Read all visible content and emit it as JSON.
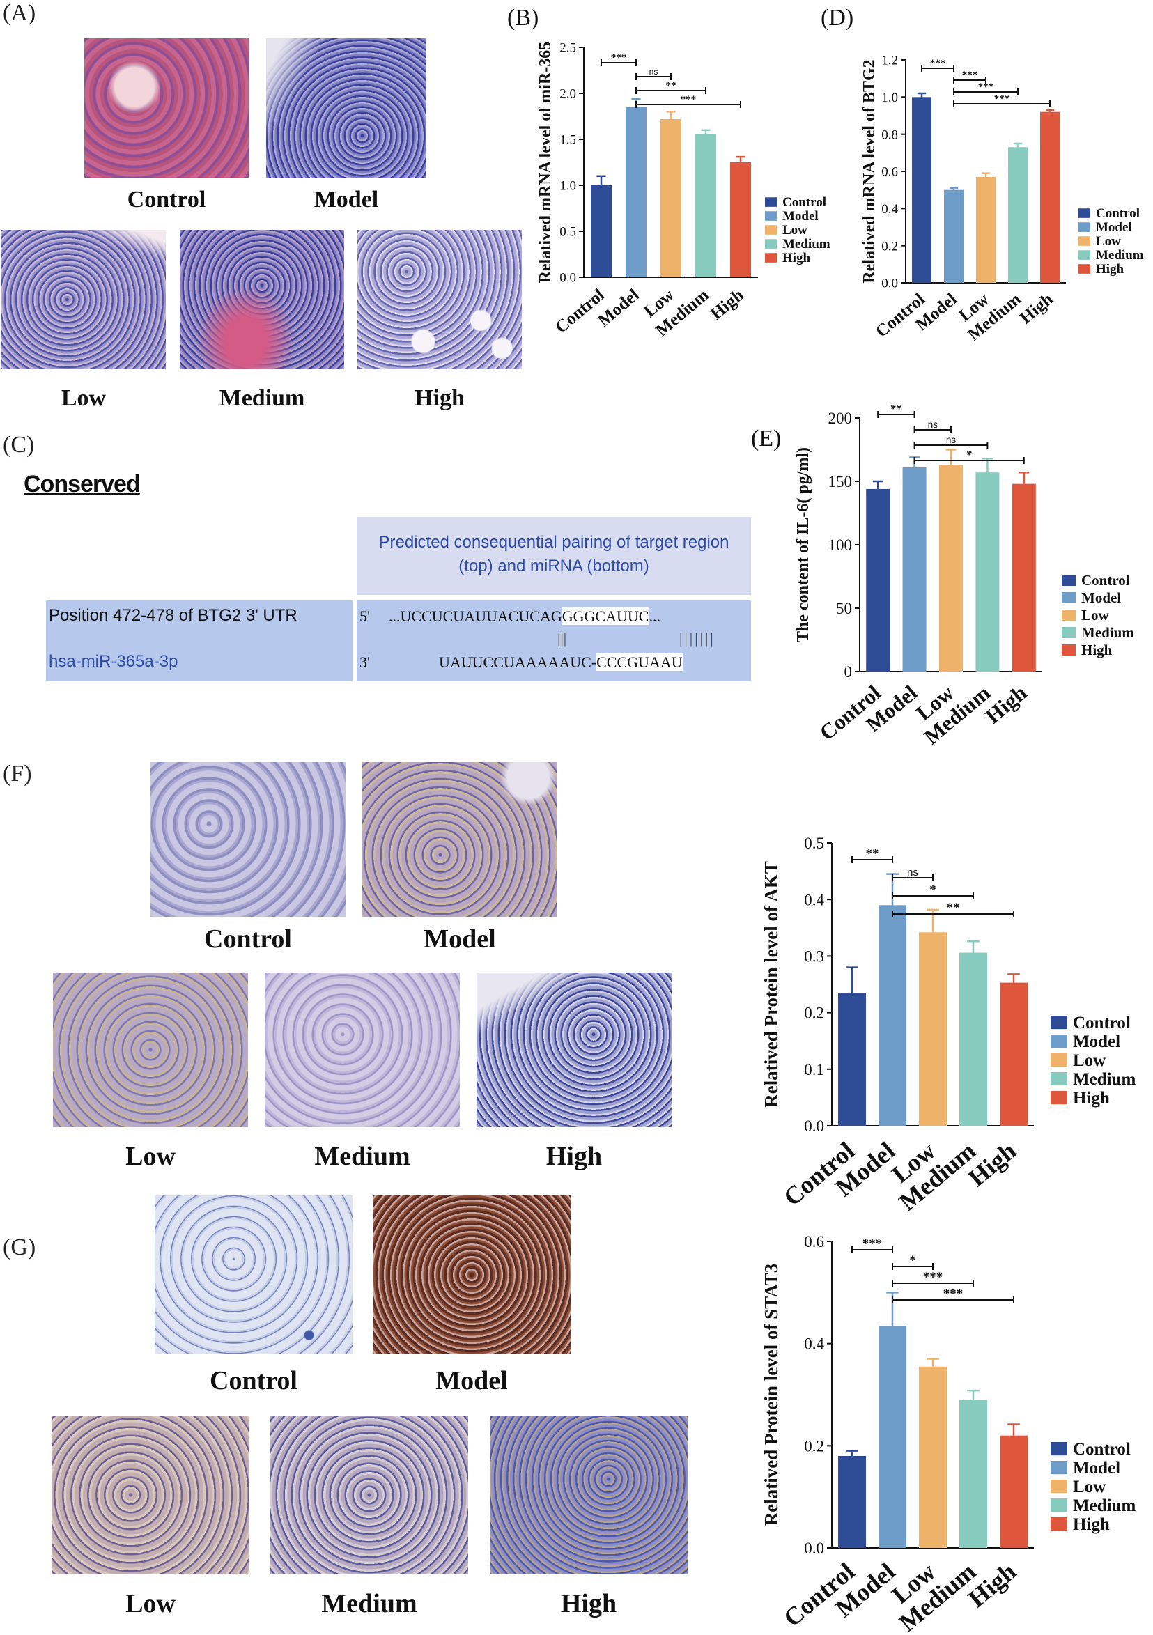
{
  "colors": {
    "Control": "#2e4b96",
    "Model": "#6e9cc8",
    "Low": "#efb26a",
    "Medium": "#86cbbd",
    "High": "#de563c",
    "box_header": "#d7dcf1",
    "box_row": "#b6c8eb",
    "header_text": "#2d4ba4",
    "mirna_text": "#2d4ba4"
  },
  "panels": {
    "A": {
      "letter": "(A)",
      "labels": [
        "Control",
        "Model",
        "Low",
        "Medium",
        "High"
      ]
    },
    "C": {
      "letter": "(C)",
      "title": "Conserved",
      "header": "Predicted consequential pairing of target region (top) and miRNA (bottom)",
      "row1_label": "Position 472-478 of BTG2 3' UTR",
      "row1_prime": "5'",
      "row1_seq_pre": "...UCCUCUAUUACUCAG",
      "row1_seq_hl": "GGGCAUUC",
      "row1_seq_post": "...",
      "pairing_left": "|||",
      "pairing_right": "|||||||",
      "row2_label": "hsa-miR-365a-3p",
      "row2_prime": "3'",
      "row2_seq_pre": "UAUUCCUAAAAAUC-",
      "row2_seq_hl": "CCCGUAAU"
    },
    "F": {
      "letter": "(F)",
      "labels": [
        "Control",
        "Model",
        "Low",
        "Medium",
        "High"
      ]
    },
    "G": {
      "letter": "(G)",
      "labels": [
        "Control",
        "Model",
        "Low",
        "Medium",
        "High"
      ]
    }
  },
  "chart_data": [
    {
      "id": "B",
      "letter": "(B)",
      "type": "bar",
      "categories": [
        "Control",
        "Model",
        "Low",
        "Medium",
        "High"
      ],
      "values": [
        1.0,
        1.85,
        1.72,
        1.56,
        1.25
      ],
      "errors": [
        0.1,
        0.09,
        0.08,
        0.04,
        0.06
      ],
      "ylabel": "Relatived mRNA level of miR-365",
      "ylim": [
        0,
        2.5
      ],
      "yticks": [
        "0.0",
        "0.5",
        "1.0",
        "1.5",
        "2.0",
        "2.5"
      ],
      "legend": [
        "Control",
        "Model",
        "Low",
        "Medium",
        "High"
      ],
      "significance": [
        {
          "from": 0,
          "to": 1,
          "label": "***"
        },
        {
          "from": 1,
          "to": 2,
          "label": "ns"
        },
        {
          "from": 1,
          "to": 3,
          "label": "**"
        },
        {
          "from": 1,
          "to": 4,
          "label": "***"
        }
      ]
    },
    {
      "id": "D",
      "letter": "(D)",
      "type": "bar",
      "categories": [
        "Control",
        "Model",
        "Low",
        "Medium",
        "High"
      ],
      "values": [
        1.0,
        0.5,
        0.57,
        0.73,
        0.92
      ],
      "errors": [
        0.02,
        0.01,
        0.02,
        0.02,
        0.01
      ],
      "ylabel": "Relatived mRNA level of BTG2",
      "ylim": [
        0,
        1.2
      ],
      "yticks": [
        "0.0",
        "0.2",
        "0.4",
        "0.6",
        "0.8",
        "1.0",
        "1.2"
      ],
      "legend": [
        "Control",
        "Model",
        "Low",
        "Medium",
        "High"
      ],
      "significance": [
        {
          "from": 0,
          "to": 1,
          "label": "***"
        },
        {
          "from": 1,
          "to": 2,
          "label": "***"
        },
        {
          "from": 1,
          "to": 3,
          "label": "***"
        },
        {
          "from": 1,
          "to": 4,
          "label": "***"
        }
      ]
    },
    {
      "id": "E",
      "letter": "(E)",
      "type": "bar",
      "categories": [
        "Control",
        "Model",
        "Low",
        "Medium",
        "High"
      ],
      "values": [
        144,
        161,
        163,
        157,
        148
      ],
      "errors": [
        6,
        8,
        12,
        11,
        9
      ],
      "ylabel": "The content  of IL-6( pg/ml)",
      "ylim": [
        0,
        200
      ],
      "yticks": [
        "0",
        "50",
        "100",
        "150",
        "200"
      ],
      "legend": [
        "Control",
        "Model",
        "Low",
        "Medium",
        "High"
      ],
      "significance": [
        {
          "from": 0,
          "to": 1,
          "label": "**"
        },
        {
          "from": 1,
          "to": 2,
          "label": "ns"
        },
        {
          "from": 1,
          "to": 3,
          "label": "ns"
        },
        {
          "from": 1,
          "to": 4,
          "label": "*"
        }
      ]
    },
    {
      "id": "AKT",
      "letter": "",
      "type": "bar",
      "categories": [
        "Control",
        "Model",
        "Low",
        "Medium",
        "High"
      ],
      "values": [
        0.235,
        0.39,
        0.342,
        0.306,
        0.253
      ],
      "errors": [
        0.045,
        0.055,
        0.04,
        0.02,
        0.015
      ],
      "ylabel": "Relatived Protein level of AKT",
      "ylim": [
        0,
        0.5
      ],
      "yticks": [
        "0.0",
        "0.1",
        "0.2",
        "0.3",
        "0.4",
        "0.5"
      ],
      "legend": [
        "Control",
        "Model",
        "Low",
        "Medium",
        "High"
      ],
      "significance": [
        {
          "from": 0,
          "to": 1,
          "label": "**"
        },
        {
          "from": 1,
          "to": 2,
          "label": "ns"
        },
        {
          "from": 1,
          "to": 3,
          "label": "*"
        },
        {
          "from": 1,
          "to": 4,
          "label": "**"
        }
      ]
    },
    {
      "id": "STAT3",
      "letter": "",
      "type": "bar",
      "categories": [
        "Control",
        "Model",
        "Low",
        "Medium",
        "High"
      ],
      "values": [
        0.18,
        0.435,
        0.355,
        0.29,
        0.22
      ],
      "errors": [
        0.01,
        0.065,
        0.015,
        0.018,
        0.022
      ],
      "ylabel": "Relatived Protein level of STAT3",
      "ylim": [
        0,
        0.6
      ],
      "yticks": [
        "0.0",
        "0.2",
        "0.4",
        "0.6"
      ],
      "legend": [
        "Control",
        "Model",
        "Low",
        "Medium",
        "High"
      ],
      "significance": [
        {
          "from": 0,
          "to": 1,
          "label": "***"
        },
        {
          "from": 1,
          "to": 2,
          "label": "*"
        },
        {
          "from": 1,
          "to": 3,
          "label": "***"
        },
        {
          "from": 1,
          "to": 4,
          "label": "***"
        }
      ]
    }
  ]
}
